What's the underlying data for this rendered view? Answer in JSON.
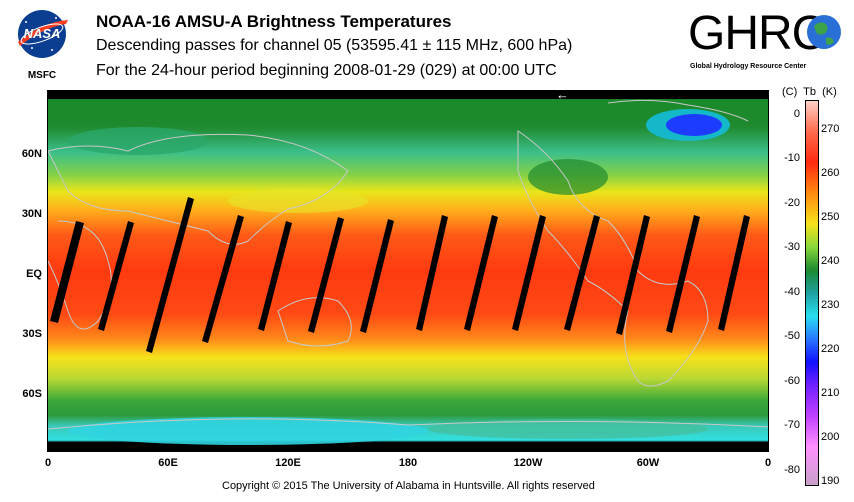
{
  "header": {
    "title": "NOAA-16 AMSU-A Brightness Temperatures",
    "subtitle1": "Descending passes for channel 05 (53595.41 ± 115 MHz, 600 hPa)",
    "subtitle2": "For the 24-hour period beginning 2008-01-29 (029) at 00:00 UTC"
  },
  "logos": {
    "left_text": "NASA",
    "left_caption": "MSFC",
    "right_text": "GHRC",
    "right_caption": "Global Hydrology Resource Center"
  },
  "map": {
    "lat_labels": [
      "60N",
      "30N",
      "EQ",
      "30S",
      "60S"
    ],
    "lon_labels": [
      "0",
      "60E",
      "120E",
      "180",
      "120W",
      "60W",
      "0"
    ],
    "direction_arrow": "←",
    "colors": {
      "swath_gap": "#000000",
      "coastline": "#c8c8c8",
      "polar_cold": "#1e8cff",
      "tropics_warm": "#ff4a10",
      "midlat": "#f2e600"
    }
  },
  "colorbar": {
    "header": "(C)  Tb  (K)",
    "celsius_ticks": [
      "0",
      "-10",
      "-20",
      "-30",
      "-40",
      "-50",
      "-60",
      "-70",
      "-80"
    ],
    "kelvin_ticks": [
      "270",
      "260",
      "250",
      "240",
      "230",
      "220",
      "210",
      "200",
      "190"
    ],
    "k_min": 188,
    "k_max": 276
  },
  "footer": {
    "copyright": "Copyright © 2015 The University of Alabama in Huntsville.  All rights reserved"
  }
}
